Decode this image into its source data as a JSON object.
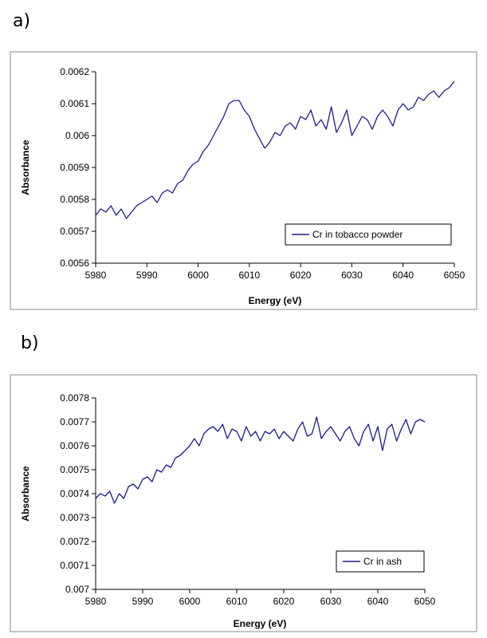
{
  "panel_labels": {
    "a": "a)",
    "b": "b)"
  },
  "chart_data": [
    {
      "type": "line",
      "panel": "a)",
      "xlabel": "Energy (eV)",
      "ylabel": "Absorbance",
      "xlim": [
        5980,
        6050
      ],
      "ylim": [
        0.0056,
        0.0062
      ],
      "xticks": [
        "5980",
        "5990",
        "6000",
        "6010",
        "6020",
        "6030",
        "6040",
        "6050"
      ],
      "yticks": [
        "0.0056",
        "0.0057",
        "0.0058",
        "0.0059",
        "0.006",
        "0.0061",
        "0.0062"
      ],
      "legend_position": "bottom-right",
      "color": "#1a1a8c",
      "series": [
        {
          "name": "Cr in tobacco powder",
          "x": [
            5980,
            5981,
            5982,
            5983,
            5984,
            5985,
            5986,
            5987,
            5988,
            5989,
            5990,
            5991,
            5992,
            5993,
            5994,
            5995,
            5996,
            5997,
            5998,
            5999,
            6000,
            6001,
            6002,
            6003,
            6004,
            6005,
            6006,
            6007,
            6008,
            6009,
            6010,
            6011,
            6012,
            6013,
            6014,
            6015,
            6016,
            6017,
            6018,
            6019,
            6020,
            6021,
            6022,
            6023,
            6024,
            6025,
            6026,
            6027,
            6028,
            6029,
            6030,
            6031,
            6032,
            6033,
            6034,
            6035,
            6036,
            6037,
            6038,
            6039,
            6040,
            6041,
            6042,
            6043,
            6044,
            6045,
            6046,
            6047,
            6048,
            6049,
            6050
          ],
          "y": [
            0.00575,
            0.00577,
            0.00576,
            0.00578,
            0.00575,
            0.00577,
            0.00574,
            0.00576,
            0.00578,
            0.00579,
            0.0058,
            0.00581,
            0.00579,
            0.00582,
            0.00583,
            0.00582,
            0.00585,
            0.00586,
            0.00589,
            0.00591,
            0.00592,
            0.00595,
            0.00597,
            0.006,
            0.00603,
            0.00606,
            0.0061,
            0.00611,
            0.00611,
            0.00608,
            0.00606,
            0.00602,
            0.00599,
            0.00596,
            0.00598,
            0.00601,
            0.006,
            0.00603,
            0.00604,
            0.00602,
            0.00606,
            0.00605,
            0.00608,
            0.00603,
            0.00605,
            0.00602,
            0.00609,
            0.00601,
            0.00604,
            0.00608,
            0.006,
            0.00603,
            0.00606,
            0.00605,
            0.00602,
            0.00606,
            0.00608,
            0.00606,
            0.00603,
            0.00608,
            0.0061,
            0.00608,
            0.00609,
            0.00612,
            0.00611,
            0.00613,
            0.00614,
            0.00612,
            0.00614,
            0.00615,
            0.00617
          ]
        }
      ]
    },
    {
      "type": "line",
      "panel": "b)",
      "xlabel": "Energy (eV)",
      "ylabel": "Absorbance",
      "xlim": [
        5980,
        6050
      ],
      "ylim": [
        0.007,
        0.0078
      ],
      "xticks": [
        "5980",
        "5990",
        "6000",
        "6010",
        "6020",
        "6030",
        "6040",
        "6050"
      ],
      "yticks": [
        "0.007",
        "0.0071",
        "0.0072",
        "0.0073",
        "0.0074",
        "0.0075",
        "0.0076",
        "0.0077",
        "0.0078"
      ],
      "legend_position": "bottom-right",
      "color": "#1a1a8c",
      "series": [
        {
          "name": "Cr in ash",
          "x": [
            5980,
            5981,
            5982,
            5983,
            5984,
            5985,
            5986,
            5987,
            5988,
            5989,
            5990,
            5991,
            5992,
            5993,
            5994,
            5995,
            5996,
            5997,
            5998,
            5999,
            6000,
            6001,
            6002,
            6003,
            6004,
            6005,
            6006,
            6007,
            6008,
            6009,
            6010,
            6011,
            6012,
            6013,
            6014,
            6015,
            6016,
            6017,
            6018,
            6019,
            6020,
            6021,
            6022,
            6023,
            6024,
            6025,
            6026,
            6027,
            6028,
            6029,
            6030,
            6031,
            6032,
            6033,
            6034,
            6035,
            6036,
            6037,
            6038,
            6039,
            6040,
            6041,
            6042,
            6043,
            6044,
            6045,
            6046,
            6047,
            6048,
            6049,
            6050
          ],
          "y": [
            0.00738,
            0.0074,
            0.00739,
            0.00741,
            0.00736,
            0.0074,
            0.00738,
            0.00743,
            0.00744,
            0.00742,
            0.00746,
            0.00747,
            0.00745,
            0.0075,
            0.00749,
            0.00752,
            0.00751,
            0.00755,
            0.00756,
            0.00758,
            0.0076,
            0.00763,
            0.0076,
            0.00765,
            0.00767,
            0.00768,
            0.00766,
            0.00769,
            0.00763,
            0.00767,
            0.00766,
            0.00762,
            0.00768,
            0.00764,
            0.00766,
            0.00762,
            0.00766,
            0.00765,
            0.00767,
            0.00763,
            0.00766,
            0.00764,
            0.00762,
            0.00767,
            0.0077,
            0.00764,
            0.00765,
            0.00772,
            0.00763,
            0.00766,
            0.00768,
            0.00765,
            0.00762,
            0.00766,
            0.00768,
            0.00763,
            0.0076,
            0.00766,
            0.00769,
            0.00762,
            0.00768,
            0.00758,
            0.00767,
            0.00769,
            0.00762,
            0.00767,
            0.00771,
            0.00765,
            0.0077,
            0.00771,
            0.0077
          ]
        }
      ]
    }
  ]
}
